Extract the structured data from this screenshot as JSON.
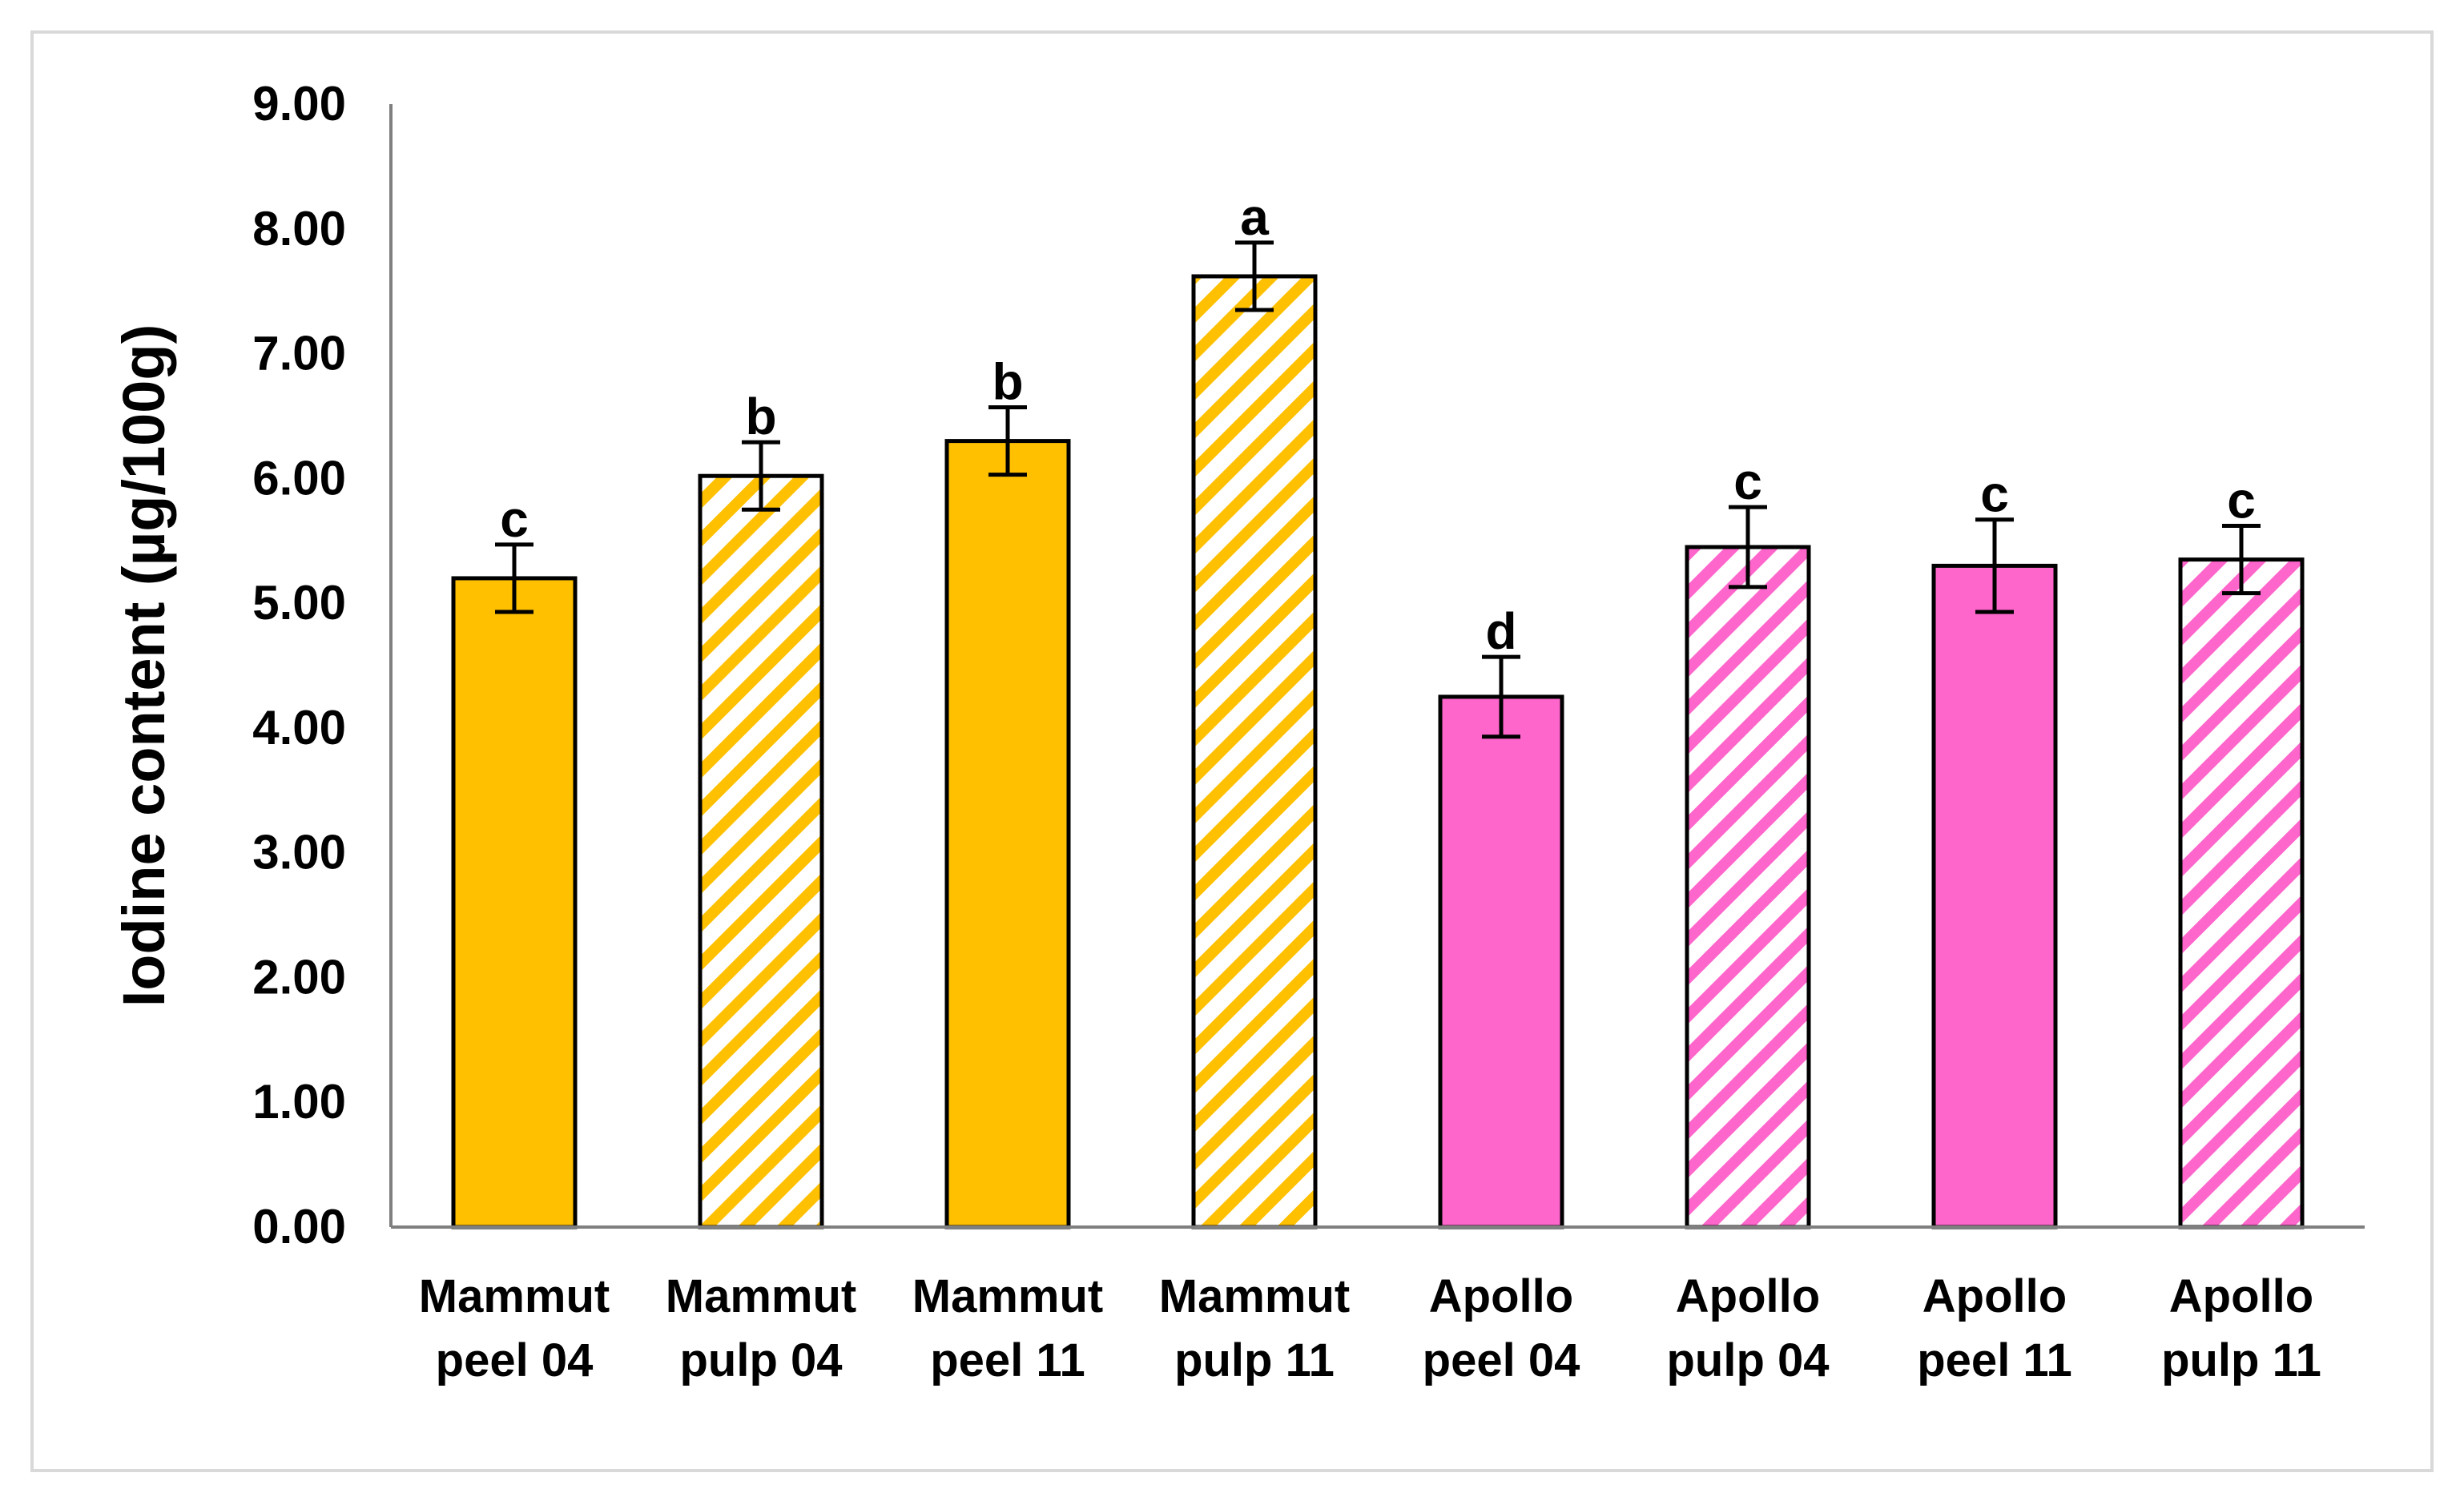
{
  "chart_data": {
    "type": "bar",
    "title": "",
    "xlabel": "",
    "ylabel": "Iodine content (µg/100g)",
    "ylim": [
      0,
      9
    ],
    "yticks": [
      "0.00",
      "1.00",
      "2.00",
      "3.00",
      "4.00",
      "5.00",
      "6.00",
      "7.00",
      "8.00",
      "9.00"
    ],
    "grid": false,
    "legend": "none",
    "categories": [
      [
        "Mammut",
        "peel 04"
      ],
      [
        "Mammut",
        "pulp 04"
      ],
      [
        "Mammut",
        "peel 11"
      ],
      [
        "Mammut",
        "pulp 11"
      ],
      [
        "Apollo",
        "peel 04"
      ],
      [
        "Apollo",
        "pulp 04"
      ],
      [
        "Apollo",
        "peel 11"
      ],
      [
        "Apollo",
        "pulp 11"
      ]
    ],
    "values": [
      5.2,
      6.02,
      6.3,
      7.62,
      4.25,
      5.45,
      5.3,
      5.35
    ],
    "errors": [
      0.27,
      0.27,
      0.27,
      0.27,
      0.32,
      0.32,
      0.37,
      0.27
    ],
    "significance": [
      "c",
      "b",
      "b",
      "a",
      "d",
      "c",
      "c",
      "c"
    ],
    "fill": [
      "solid",
      "hatched",
      "solid",
      "hatched",
      "solid",
      "hatched",
      "solid",
      "hatched"
    ],
    "colors": {
      "mammut": "#FFC000",
      "apollo": "#FF66CC",
      "axis": "#7f7f7f",
      "border": "#000000"
    }
  }
}
